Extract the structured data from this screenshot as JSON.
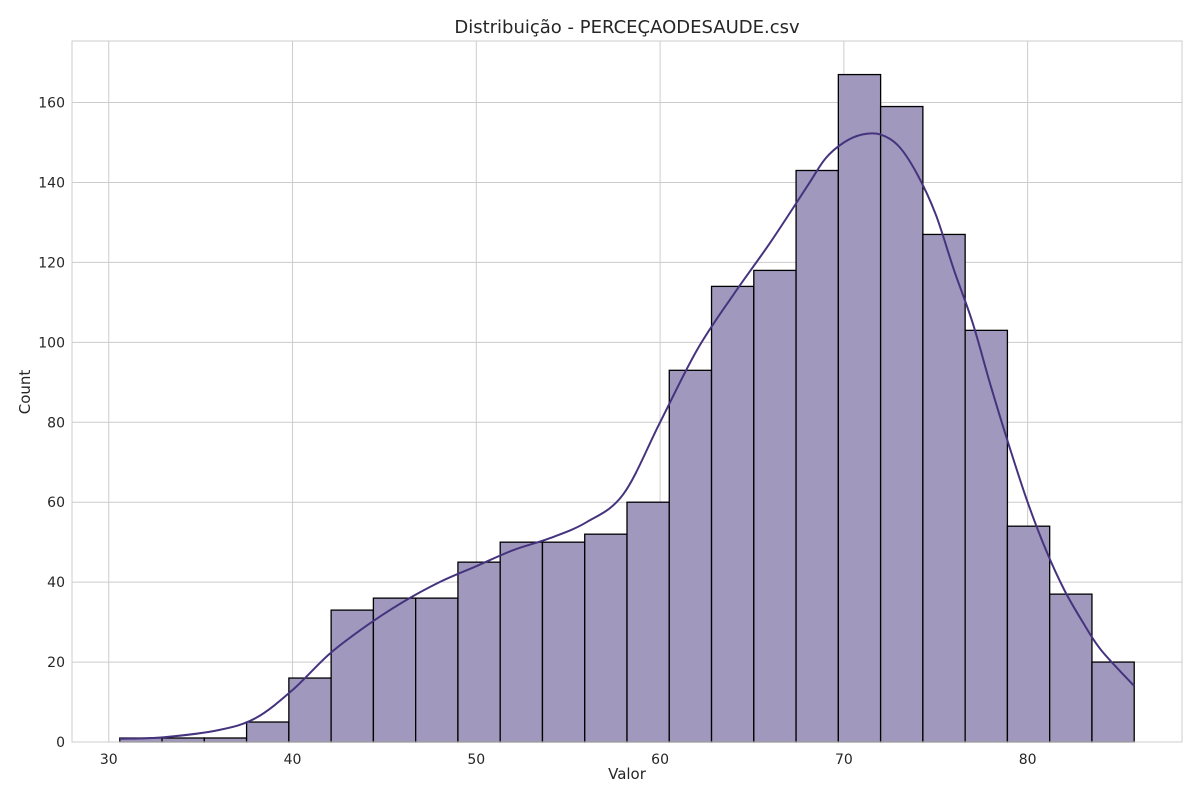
{
  "chart_data": {
    "type": "bar",
    "subtype": "histogram",
    "title": "Distribuição - PERCEÇAODESAUDE.csv",
    "xlabel": "Valor",
    "ylabel": "Count",
    "bin_edges": [
      30.6,
      32.9,
      35.2,
      37.5,
      39.8,
      42.1,
      44.4,
      46.7,
      49.0,
      51.3,
      53.6,
      55.9,
      58.2,
      60.5,
      62.8,
      65.1,
      67.4,
      69.7,
      72.0,
      74.3,
      76.6,
      78.9,
      81.2,
      83.5,
      85.8
    ],
    "values": [
      1,
      1,
      1,
      5,
      16,
      33,
      36,
      36,
      45,
      50,
      50,
      52,
      60,
      93,
      114,
      118,
      143,
      167,
      159,
      127,
      103,
      54,
      37,
      20
    ],
    "kde": {
      "x": [
        30.6,
        33,
        36,
        38,
        40,
        42,
        44,
        46,
        48,
        50,
        52,
        54,
        56,
        58,
        60,
        62,
        64,
        66,
        68,
        69,
        70,
        71,
        72,
        73,
        74,
        75,
        76,
        77,
        78,
        79,
        80,
        81,
        82,
        83,
        84,
        85.8
      ],
      "y": [
        0.8,
        1.2,
        3,
        6,
        13,
        22,
        29,
        35,
        40,
        44,
        48,
        51,
        55,
        62,
        80,
        98,
        112,
        125,
        139,
        146,
        150,
        152,
        152,
        149,
        142,
        132,
        118,
        105,
        89,
        74,
        60,
        48,
        38,
        30,
        23,
        14
      ]
    },
    "xticks": [
      30,
      40,
      50,
      60,
      70,
      80
    ],
    "yticks": [
      0,
      20,
      40,
      60,
      80,
      100,
      120,
      140,
      160
    ],
    "xlim": [
      28.0,
      88.4
    ],
    "ylim": [
      0,
      175.4
    ],
    "grid": true,
    "legend": false,
    "colors": {
      "bar_fill": "#a198be",
      "bar_edge": "#000000",
      "kde_line": "#46337e",
      "grid": "#cccccc",
      "text": "#262626"
    }
  }
}
